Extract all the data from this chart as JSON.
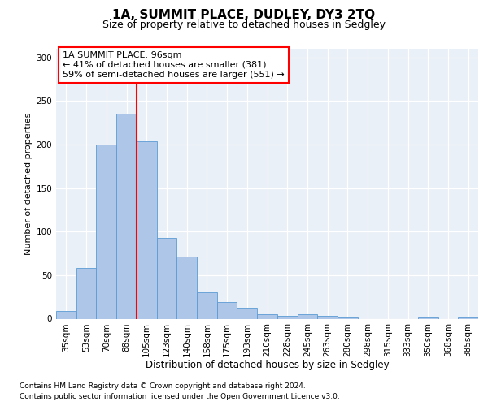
{
  "title": "1A, SUMMIT PLACE, DUDLEY, DY3 2TQ",
  "subtitle": "Size of property relative to detached houses in Sedgley",
  "xlabel": "Distribution of detached houses by size in Sedgley",
  "ylabel": "Number of detached properties",
  "categories": [
    "35sqm",
    "53sqm",
    "70sqm",
    "88sqm",
    "105sqm",
    "123sqm",
    "140sqm",
    "158sqm",
    "175sqm",
    "193sqm",
    "210sqm",
    "228sqm",
    "245sqm",
    "263sqm",
    "280sqm",
    "298sqm",
    "315sqm",
    "333sqm",
    "350sqm",
    "368sqm",
    "385sqm"
  ],
  "bar_values": [
    9,
    58,
    200,
    235,
    204,
    93,
    71,
    30,
    19,
    13,
    5,
    3,
    5,
    3,
    1,
    0,
    0,
    0,
    1,
    0,
    1
  ],
  "bar_color": "#aec6e8",
  "bar_edge_color": "#5b9bd5",
  "red_line_index": 3.5,
  "annotation_text": "1A SUMMIT PLACE: 96sqm\n← 41% of detached houses are smaller (381)\n59% of semi-detached houses are larger (551) →",
  "bg_color": "#eaf0f8",
  "footer_line1": "Contains HM Land Registry data © Crown copyright and database right 2024.",
  "footer_line2": "Contains public sector information licensed under the Open Government Licence v3.0.",
  "ylim": [
    0,
    310
  ],
  "yticks": [
    0,
    50,
    100,
    150,
    200,
    250,
    300
  ],
  "title_fontsize": 11,
  "subtitle_fontsize": 9,
  "ylabel_fontsize": 8,
  "tick_fontsize": 7.5,
  "annot_fontsize": 8,
  "footer_fontsize": 6.5,
  "xlabel_fontsize": 8.5
}
